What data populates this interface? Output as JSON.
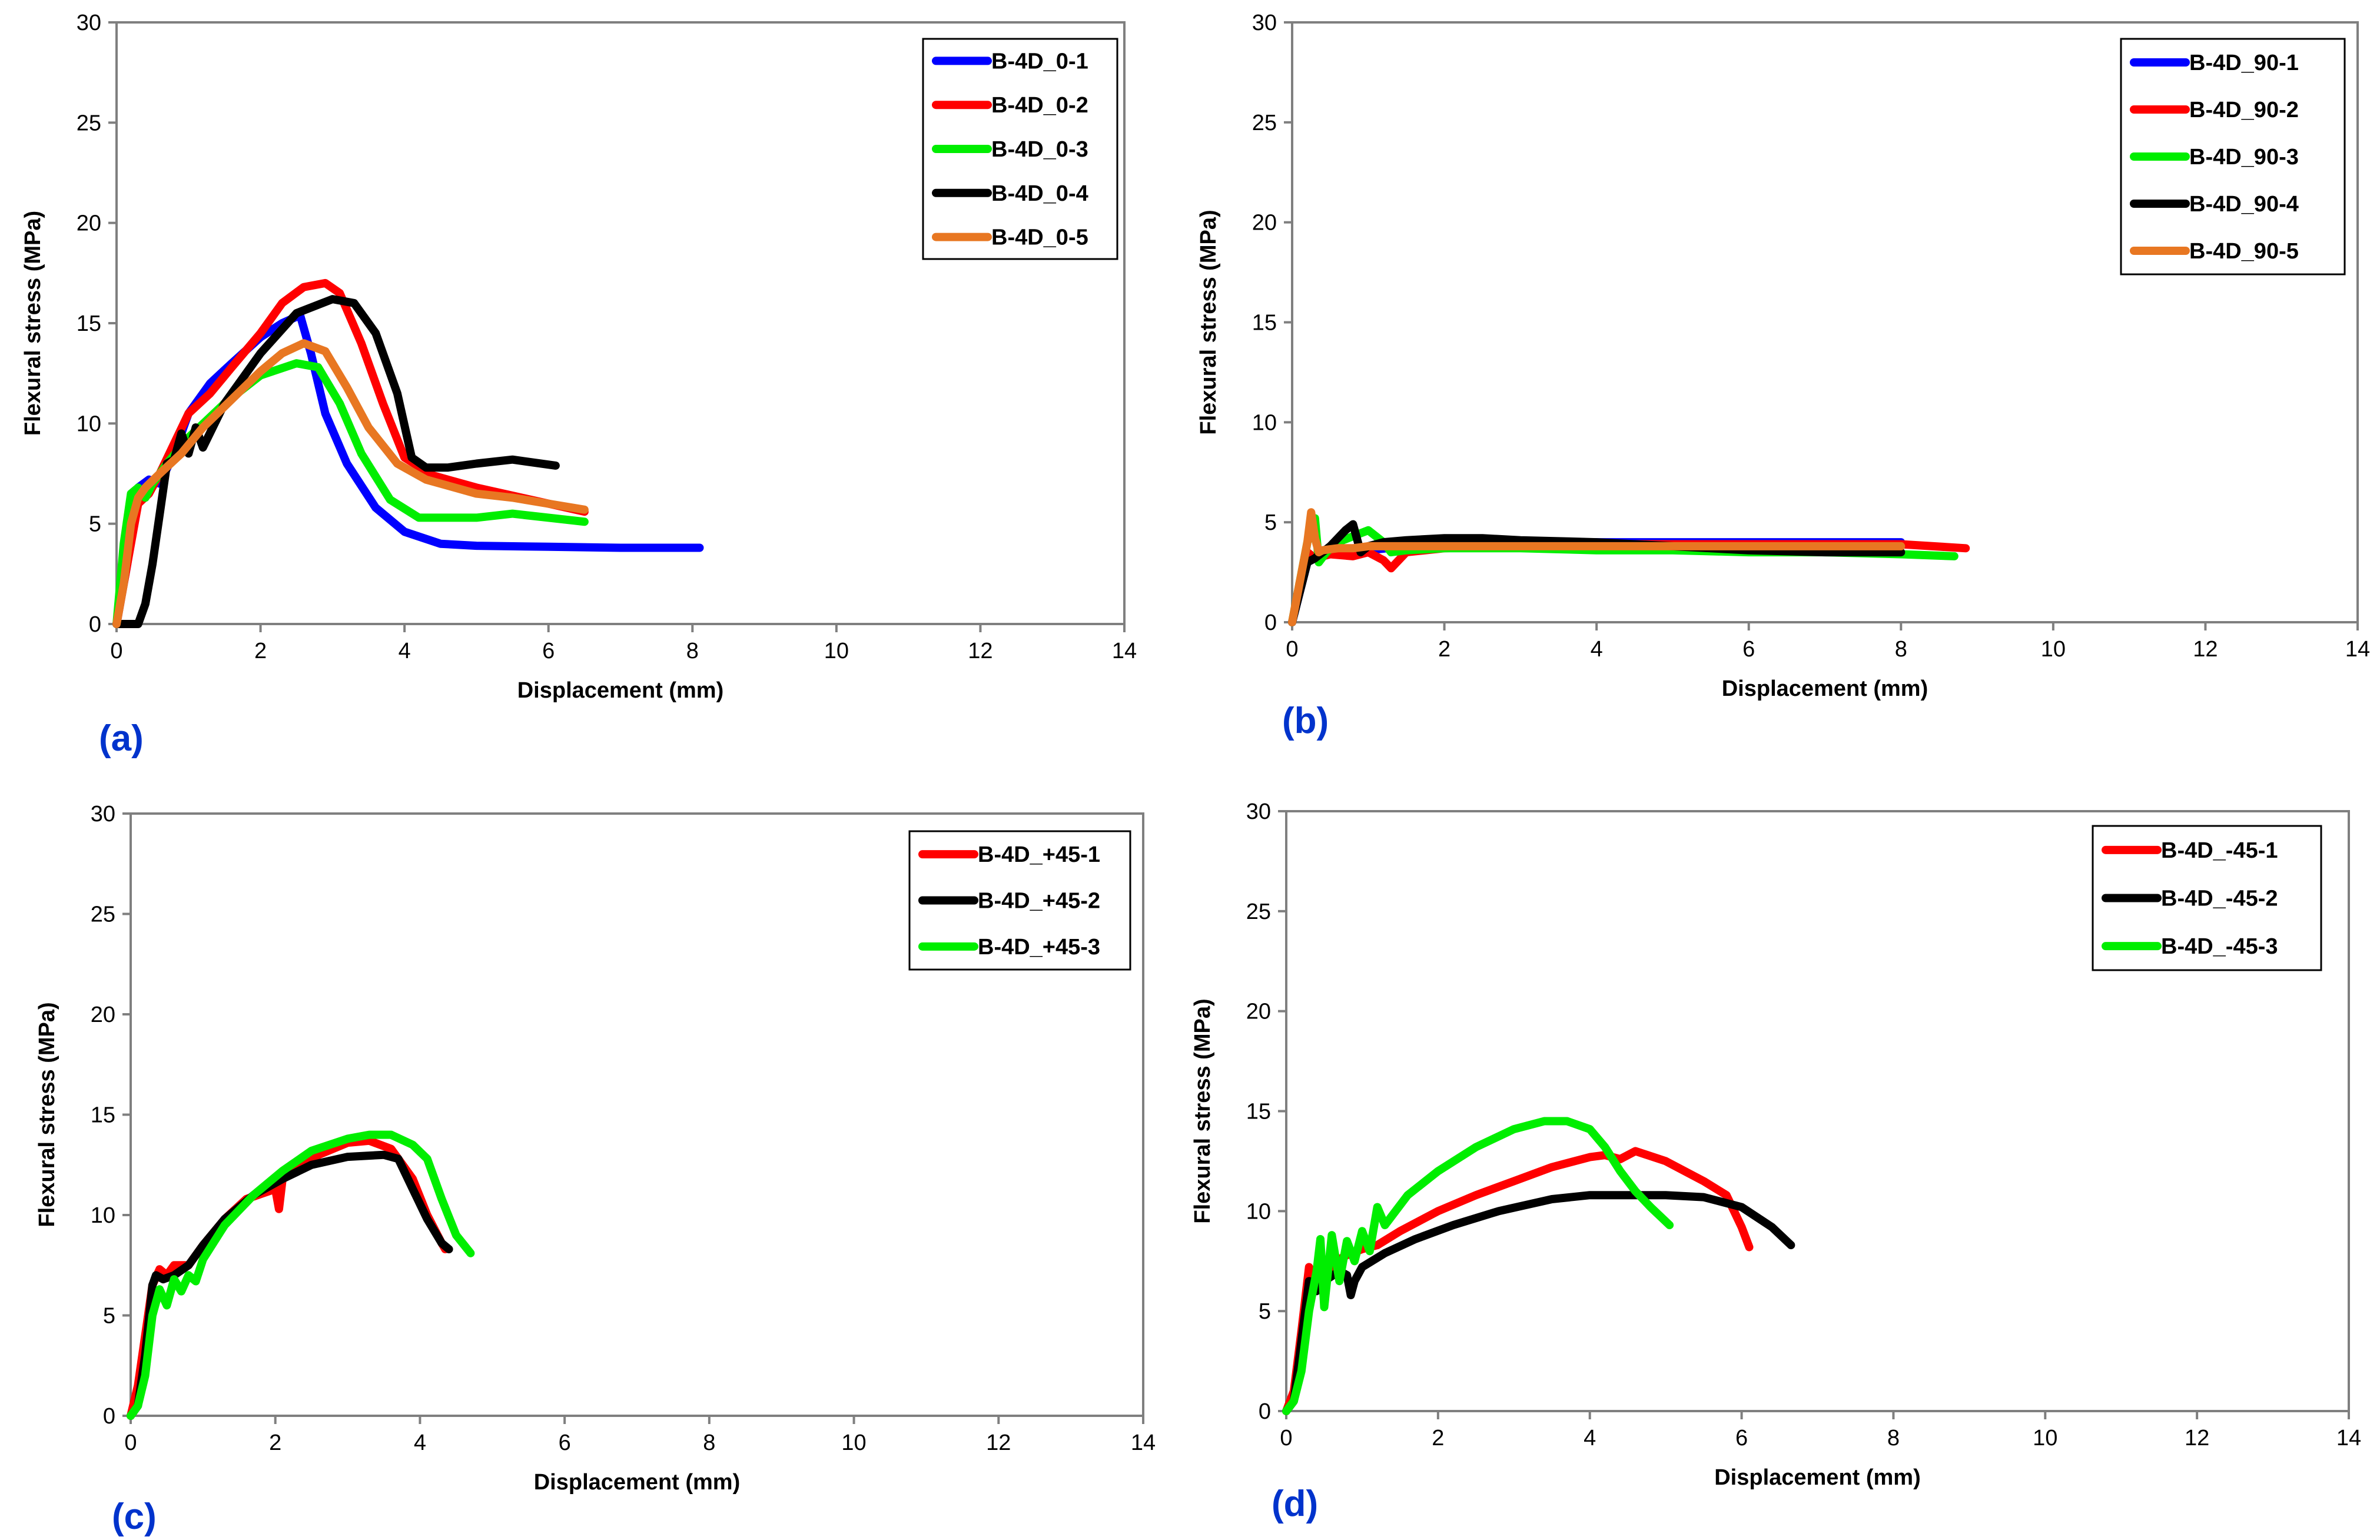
{
  "chart_data": [
    {
      "type": "line",
      "panel_label": "(a)",
      "xlabel": "Displacement (mm)",
      "ylabel": "Flexural stress  (MPa)",
      "xlim": [
        0,
        14
      ],
      "ylim": [
        0,
        30
      ],
      "xticks": [
        0,
        2,
        4,
        6,
        8,
        10,
        12,
        14
      ],
      "yticks": [
        0,
        5,
        10,
        15,
        20,
        25,
        30
      ],
      "legend_position": "top-right",
      "series": [
        {
          "name": "B-4D_0-1",
          "color": "#0000ff",
          "x": [
            0,
            0.15,
            0.3,
            0.45,
            0.6,
            0.8,
            1.0,
            1.3,
            1.6,
            2.0,
            2.3,
            2.55,
            2.7,
            2.9,
            3.2,
            3.6,
            4.0,
            4.5,
            5,
            6,
            7,
            8.1
          ],
          "y": [
            0,
            3,
            6.8,
            7.2,
            7.0,
            8.5,
            10.5,
            12.0,
            13.0,
            14.3,
            15.0,
            15.4,
            13.5,
            10.5,
            8.0,
            5.8,
            4.6,
            4.0,
            3.9,
            3.85,
            3.8,
            3.8
          ]
        },
        {
          "name": "B-4D_0-2",
          "color": "#ff0000",
          "x": [
            0,
            0.15,
            0.3,
            0.45,
            0.6,
            0.8,
            1.0,
            1.3,
            1.6,
            2.0,
            2.3,
            2.6,
            2.9,
            3.1,
            3.4,
            3.7,
            4.0,
            4.4,
            5,
            5.5,
            6,
            6.5
          ],
          "y": [
            0,
            3,
            6.0,
            6.5,
            7.5,
            9.0,
            10.5,
            11.5,
            12.8,
            14.5,
            16.0,
            16.8,
            17.0,
            16.5,
            14.0,
            11.0,
            8.3,
            7.4,
            6.8,
            6.4,
            6.0,
            5.6
          ]
        },
        {
          "name": "B-4D_0-3",
          "color": "#00ee00",
          "x": [
            0,
            0.1,
            0.2,
            0.3,
            0.4,
            0.5,
            0.7,
            1.0,
            1.5,
            2.0,
            2.5,
            2.8,
            3.1,
            3.4,
            3.8,
            4.2,
            5,
            5.5,
            6,
            6.5
          ],
          "y": [
            0,
            4,
            6.5,
            6.8,
            6.3,
            7.0,
            8.0,
            9.3,
            11.0,
            12.4,
            13.0,
            12.8,
            11.0,
            8.5,
            6.2,
            5.3,
            5.3,
            5.5,
            5.3,
            5.1
          ]
        },
        {
          "name": "B-4D_0-4",
          "color": "#000000",
          "x": [
            0,
            0.3,
            0.4,
            0.5,
            0.6,
            0.7,
            0.8,
            0.9,
            1.0,
            1.1,
            1.2,
            1.5,
            2.0,
            2.5,
            3.0,
            3.3,
            3.6,
            3.9,
            4.1,
            4.3,
            4.6,
            5,
            5.5,
            6.1
          ],
          "y": [
            0,
            0,
            1,
            3,
            5.5,
            8,
            8.2,
            9.5,
            8.5,
            9.8,
            8.8,
            11.0,
            13.5,
            15.5,
            16.2,
            16.0,
            14.5,
            11.5,
            8.3,
            7.8,
            7.8,
            8.0,
            8.2,
            7.9
          ]
        },
        {
          "name": "B-4D_0-5",
          "color": "#e87722",
          "x": [
            0,
            0.1,
            0.2,
            0.3,
            0.4,
            0.6,
            0.9,
            1.2,
            1.6,
            2.0,
            2.3,
            2.6,
            2.9,
            3.2,
            3.5,
            3.9,
            4.3,
            5,
            5.5,
            6,
            6.5
          ],
          "y": [
            0,
            2,
            5,
            6.3,
            6.8,
            7.5,
            8.5,
            9.8,
            11.2,
            12.6,
            13.5,
            14.0,
            13.6,
            11.8,
            9.8,
            8.0,
            7.2,
            6.5,
            6.3,
            6.0,
            5.7
          ]
        }
      ]
    },
    {
      "type": "line",
      "panel_label": "(b)",
      "xlabel": "Displacement (mm)",
      "ylabel": "Flexural stress  (MPa)",
      "xlim": [
        0,
        14
      ],
      "ylim": [
        0,
        30
      ],
      "xticks": [
        0,
        2,
        4,
        6,
        8,
        10,
        12,
        14
      ],
      "yticks": [
        0,
        5,
        10,
        15,
        20,
        25,
        30
      ],
      "legend_position": "top-right",
      "series": [
        {
          "name": "B-4D_90-1",
          "color": "#0000ff",
          "x": [
            0,
            0.1,
            0.2,
            0.3,
            0.5,
            0.8,
            1.0,
            1.5,
            2,
            3,
            4,
            5,
            6,
            7,
            8
          ],
          "y": [
            0,
            1.5,
            3,
            3.2,
            3.4,
            3.5,
            3.6,
            3.8,
            3.9,
            4.0,
            4.0,
            4.0,
            4.0,
            4.0,
            4.0
          ]
        },
        {
          "name": "B-4D_90-2",
          "color": "#ff0000",
          "x": [
            0,
            0.1,
            0.2,
            0.3,
            0.5,
            0.8,
            1.0,
            1.2,
            1.3,
            1.5,
            2,
            3,
            4,
            5,
            6,
            7,
            8,
            8.85
          ],
          "y": [
            0,
            2,
            3.5,
            3.2,
            3.4,
            3.3,
            3.5,
            3.1,
            2.7,
            3.5,
            3.7,
            3.8,
            3.9,
            3.9,
            3.9,
            3.9,
            3.9,
            3.7
          ]
        },
        {
          "name": "B-4D_90-3",
          "color": "#00ee00",
          "x": [
            0,
            0.1,
            0.2,
            0.3,
            0.35,
            0.45,
            0.6,
            0.8,
            1.0,
            1.2,
            1.3,
            1.5,
            2,
            3,
            4,
            5,
            6,
            7,
            8,
            8.7
          ],
          "y": [
            0,
            2,
            4,
            5.2,
            3.0,
            3.5,
            4.0,
            4.3,
            4.6,
            4.0,
            3.5,
            3.6,
            3.7,
            3.7,
            3.6,
            3.6,
            3.5,
            3.5,
            3.4,
            3.3
          ]
        },
        {
          "name": "B-4D_90-4",
          "color": "#000000",
          "x": [
            0,
            0.1,
            0.2,
            0.3,
            0.4,
            0.5,
            0.6,
            0.7,
            0.8,
            0.9,
            1.0,
            1.2,
            1.5,
            2.0,
            2.5,
            3,
            4,
            5,
            6,
            7,
            8
          ],
          "y": [
            0,
            1.5,
            3,
            3.2,
            3.5,
            3.8,
            4.2,
            4.6,
            4.9,
            3.5,
            3.8,
            4.0,
            4.1,
            4.2,
            4.2,
            4.1,
            4.0,
            3.8,
            3.6,
            3.5,
            3.5
          ]
        },
        {
          "name": "B-4D_90-5",
          "color": "#e87722",
          "x": [
            0,
            0.1,
            0.2,
            0.25,
            0.3,
            0.35,
            0.4,
            0.6,
            0.8,
            1.0,
            1.5,
            2,
            3,
            4,
            5,
            6,
            7,
            8
          ],
          "y": [
            0,
            2,
            4,
            5.5,
            4.2,
            3.5,
            3.6,
            3.7,
            3.7,
            3.8,
            3.8,
            3.8,
            3.8,
            3.8,
            3.8,
            3.8,
            3.8,
            3.8
          ]
        }
      ]
    },
    {
      "type": "line",
      "panel_label": "(c)",
      "xlabel": "Displacement (mm)",
      "ylabel": "Flexural stress  (MPa)",
      "xlim": [
        0,
        14
      ],
      "ylim": [
        0,
        30
      ],
      "xticks": [
        0,
        2,
        4,
        6,
        8,
        10,
        12,
        14
      ],
      "yticks": [
        0,
        5,
        10,
        15,
        20,
        25,
        30
      ],
      "legend_position": "top-right",
      "series": [
        {
          "name": "B-4D_+45-1",
          "color": "#ff0000",
          "x": [
            0,
            0.1,
            0.2,
            0.3,
            0.4,
            0.5,
            0.6,
            0.8,
            1.0,
            1.3,
            1.6,
            2.0,
            2.05,
            2.1,
            2.3,
            2.6,
            3.0,
            3.3,
            3.6,
            3.9,
            4.1,
            4.3,
            4.35
          ],
          "y": [
            0,
            1.5,
            4,
            6.5,
            7.3,
            7.0,
            7.5,
            7.5,
            8.5,
            9.8,
            10.8,
            11.3,
            10.3,
            11.8,
            12.4,
            13.0,
            13.6,
            13.7,
            13.3,
            11.8,
            10.0,
            8.6,
            8.3
          ]
        },
        {
          "name": "B-4D_+45-2",
          "color": "#000000",
          "x": [
            0,
            0.1,
            0.2,
            0.3,
            0.35,
            0.45,
            0.6,
            0.8,
            1.0,
            1.3,
            1.7,
            2.1,
            2.5,
            3.0,
            3.5,
            3.7,
            3.9,
            4.1,
            4.3,
            4.4
          ],
          "y": [
            0,
            0.5,
            3,
            6.5,
            7.0,
            6.8,
            7.0,
            7.5,
            8.5,
            9.8,
            11.0,
            11.8,
            12.5,
            12.9,
            13.0,
            12.8,
            11.3,
            9.8,
            8.6,
            8.3
          ]
        },
        {
          "name": "B-4D_+45-3",
          "color": "#00ee00",
          "x": [
            0,
            0.1,
            0.2,
            0.3,
            0.4,
            0.5,
            0.6,
            0.7,
            0.8,
            0.9,
            1.0,
            1.3,
            1.7,
            2.1,
            2.5,
            3.0,
            3.3,
            3.6,
            3.9,
            4.1,
            4.3,
            4.5,
            4.7
          ],
          "y": [
            0,
            0.5,
            2,
            5,
            6.3,
            5.5,
            6.8,
            6.2,
            7.0,
            6.7,
            7.8,
            9.5,
            11.0,
            12.2,
            13.2,
            13.8,
            14.0,
            14.0,
            13.5,
            12.8,
            10.8,
            9.0,
            8.1
          ]
        }
      ]
    },
    {
      "type": "line",
      "panel_label": "(d)",
      "xlabel": "Displacement (mm)",
      "ylabel": "Flexural stress  (MPa)",
      "xlim": [
        0,
        14
      ],
      "ylim": [
        0,
        30
      ],
      "xticks": [
        0,
        2,
        4,
        6,
        8,
        10,
        12,
        14
      ],
      "yticks": [
        0,
        5,
        10,
        15,
        20,
        25,
        30
      ],
      "legend_position": "top-right",
      "series": [
        {
          "name": "B-4D_-45-1",
          "color": "#ff0000",
          "x": [
            0,
            0.1,
            0.2,
            0.3,
            0.4,
            0.5,
            0.6,
            0.7,
            0.8,
            1.0,
            1.2,
            1.5,
            2.0,
            2.5,
            3.0,
            3.5,
            4.0,
            4.2,
            4.4,
            4.6,
            5.0,
            5.5,
            5.8,
            6.0,
            6.1
          ],
          "y": [
            0,
            1,
            4,
            7.2,
            6.2,
            6.8,
            7.0,
            7.6,
            7.8,
            8.1,
            8.3,
            9.0,
            10.0,
            10.8,
            11.5,
            12.2,
            12.7,
            12.8,
            12.6,
            13.0,
            12.5,
            11.5,
            10.8,
            9.2,
            8.2
          ]
        },
        {
          "name": "B-4D_-45-2",
          "color": "#000000",
          "x": [
            0,
            0.1,
            0.2,
            0.3,
            0.4,
            0.5,
            0.7,
            0.8,
            0.85,
            0.9,
            1.0,
            1.3,
            1.7,
            2.2,
            2.8,
            3.5,
            4.0,
            4.5,
            5.0,
            5.5,
            6.0,
            6.4,
            6.65
          ],
          "y": [
            0,
            0.5,
            3.5,
            6.5,
            6.0,
            6.5,
            7.0,
            6.8,
            5.8,
            6.5,
            7.2,
            7.9,
            8.6,
            9.3,
            10.0,
            10.6,
            10.8,
            10.8,
            10.8,
            10.7,
            10.2,
            9.2,
            8.3
          ]
        },
        {
          "name": "B-4D_-45-3",
          "color": "#00ee00",
          "x": [
            0,
            0.1,
            0.2,
            0.3,
            0.4,
            0.45,
            0.5,
            0.6,
            0.7,
            0.8,
            0.9,
            1.0,
            1.1,
            1.2,
            1.3,
            1.6,
            2.0,
            2.5,
            3.0,
            3.4,
            3.7,
            4.0,
            4.2,
            4.4,
            4.6,
            4.8,
            5.05
          ],
          "y": [
            0,
            0.5,
            2,
            5,
            7.0,
            8.6,
            5.2,
            8.8,
            6.5,
            8.5,
            7.5,
            9.0,
            8.0,
            10.2,
            9.3,
            10.8,
            12.0,
            13.2,
            14.1,
            14.5,
            14.5,
            14.1,
            13.2,
            12.0,
            11.0,
            10.2,
            9.3
          ]
        }
      ]
    }
  ]
}
